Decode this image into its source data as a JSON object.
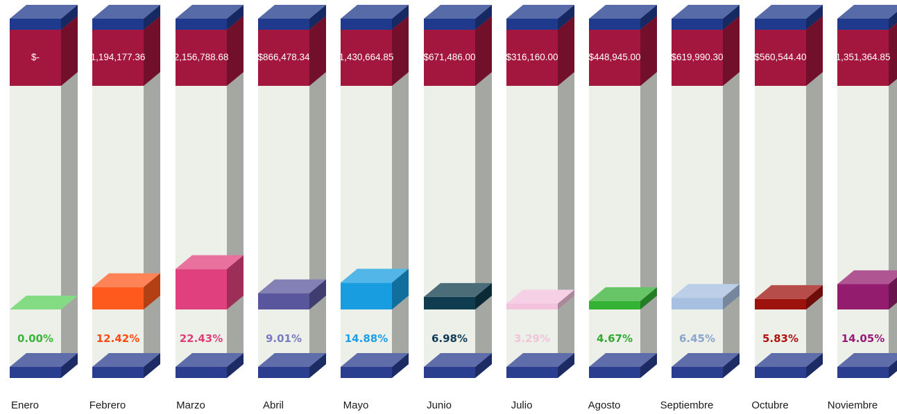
{
  "chart_data": {
    "type": "bar",
    "categories": [
      "Enero",
      "Febrero",
      "Marzo",
      "Abril",
      "Mayo",
      "Junio",
      "Julio",
      "Agosto",
      "Septiembre",
      "Octubre",
      "Noviembre"
    ],
    "amount_labels": [
      "$-",
      "1,194,177.36",
      "2,156,788.68",
      "$866,478.34",
      "1,430,664.85",
      "$671,486.00",
      "$316,160.00",
      "$448,945.00",
      "$619,990.30",
      "$560,544.40",
      "1,351,364.85"
    ],
    "values": [
      0.0,
      12.42,
      22.43,
      9.01,
      14.88,
      6.98,
      3.29,
      4.67,
      6.45,
      5.83,
      14.05
    ],
    "value_labels": [
      "0.00%",
      "12.42%",
      "22.43%",
      "9.01%",
      "14.88%",
      "6.98%",
      "3.29%",
      "4.67%",
      "6.45%",
      "5.83%",
      "14.05%"
    ],
    "colors": [
      "#5ad05a",
      "#ff5a1e",
      "#e0417e",
      "#5a569e",
      "#189ee0",
      "#0f3c4e",
      "#f3c2dc",
      "#34b234",
      "#a7bfe0",
      "#9e120e",
      "#941c6e"
    ],
    "label_colors": [
      "#3ab43a",
      "#ff4a12",
      "#e03d7a",
      "#7a7ac2",
      "#1e9ee6",
      "#103c58",
      "#f2c4dc",
      "#2eaa2e",
      "#8aa4cc",
      "#b0120e",
      "#9a1a78"
    ],
    "ylim": [
      0,
      100
    ],
    "accent_colors": {
      "top_band": "#1f3a8c",
      "amount_band": "#a3173e",
      "column_body": "#ecf0e8",
      "base_band": "#2a3d8f"
    }
  }
}
